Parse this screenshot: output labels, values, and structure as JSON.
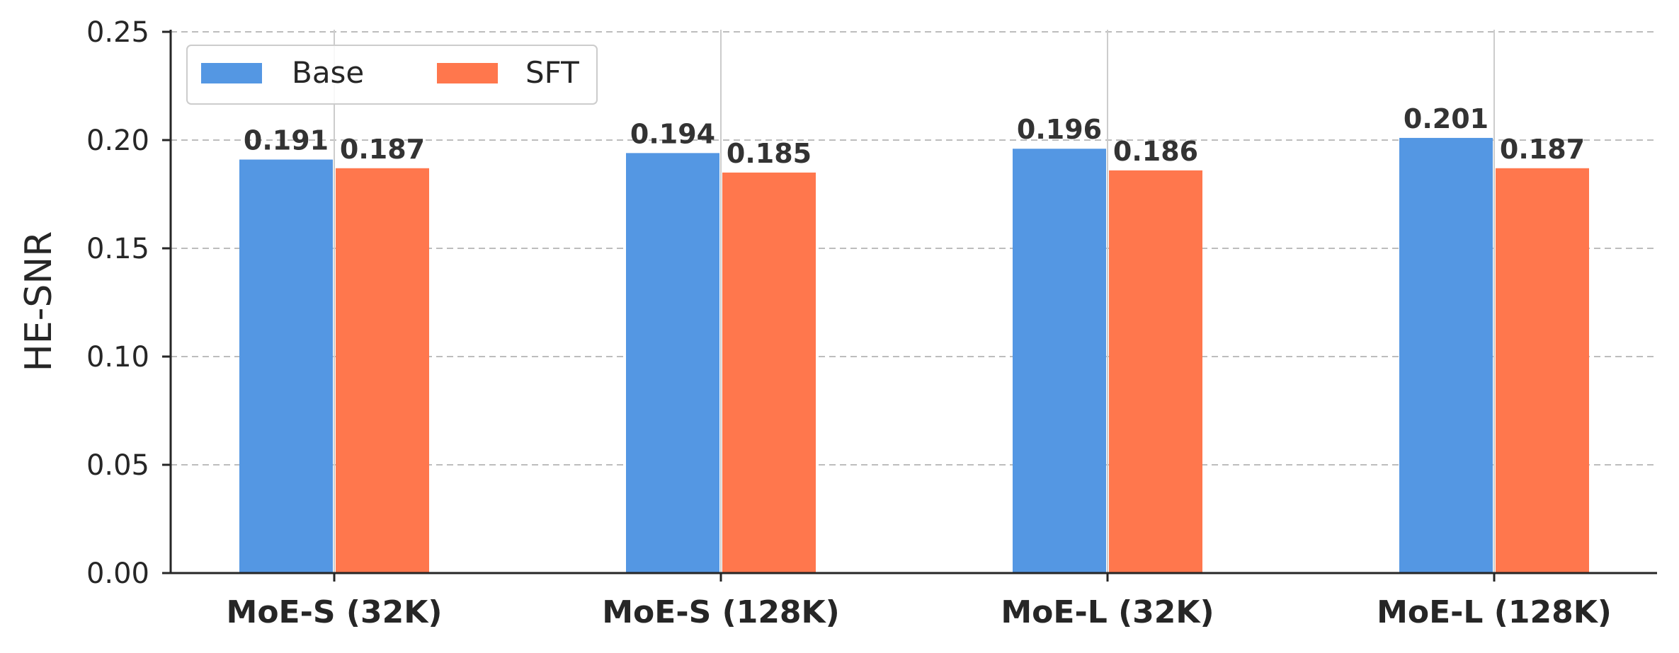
{
  "chart_data": {
    "type": "bar",
    "categories": [
      "MoE-S (32K)",
      "MoE-S (128K)",
      "MoE-L (32K)",
      "MoE-L (128K)"
    ],
    "series": [
      {
        "name": "Base",
        "values": [
          0.191,
          0.194,
          0.196,
          0.201
        ],
        "value_labels": [
          "0.191",
          "0.194",
          "0.196",
          "0.201"
        ],
        "color": "#5497E3"
      },
      {
        "name": "SFT",
        "values": [
          0.187,
          0.185,
          0.186,
          0.187
        ],
        "value_labels": [
          "0.187",
          "0.185",
          "0.186",
          "0.187"
        ],
        "color": "#FF774D"
      }
    ],
    "title": "",
    "xlabel": "",
    "ylabel": "HE-SNR",
    "ylim": [
      0,
      0.25
    ],
    "yticks": [
      "0.00",
      "0.05",
      "0.10",
      "0.15",
      "0.20",
      "0.25"
    ],
    "grid": true,
    "legend_position": "top-left"
  }
}
